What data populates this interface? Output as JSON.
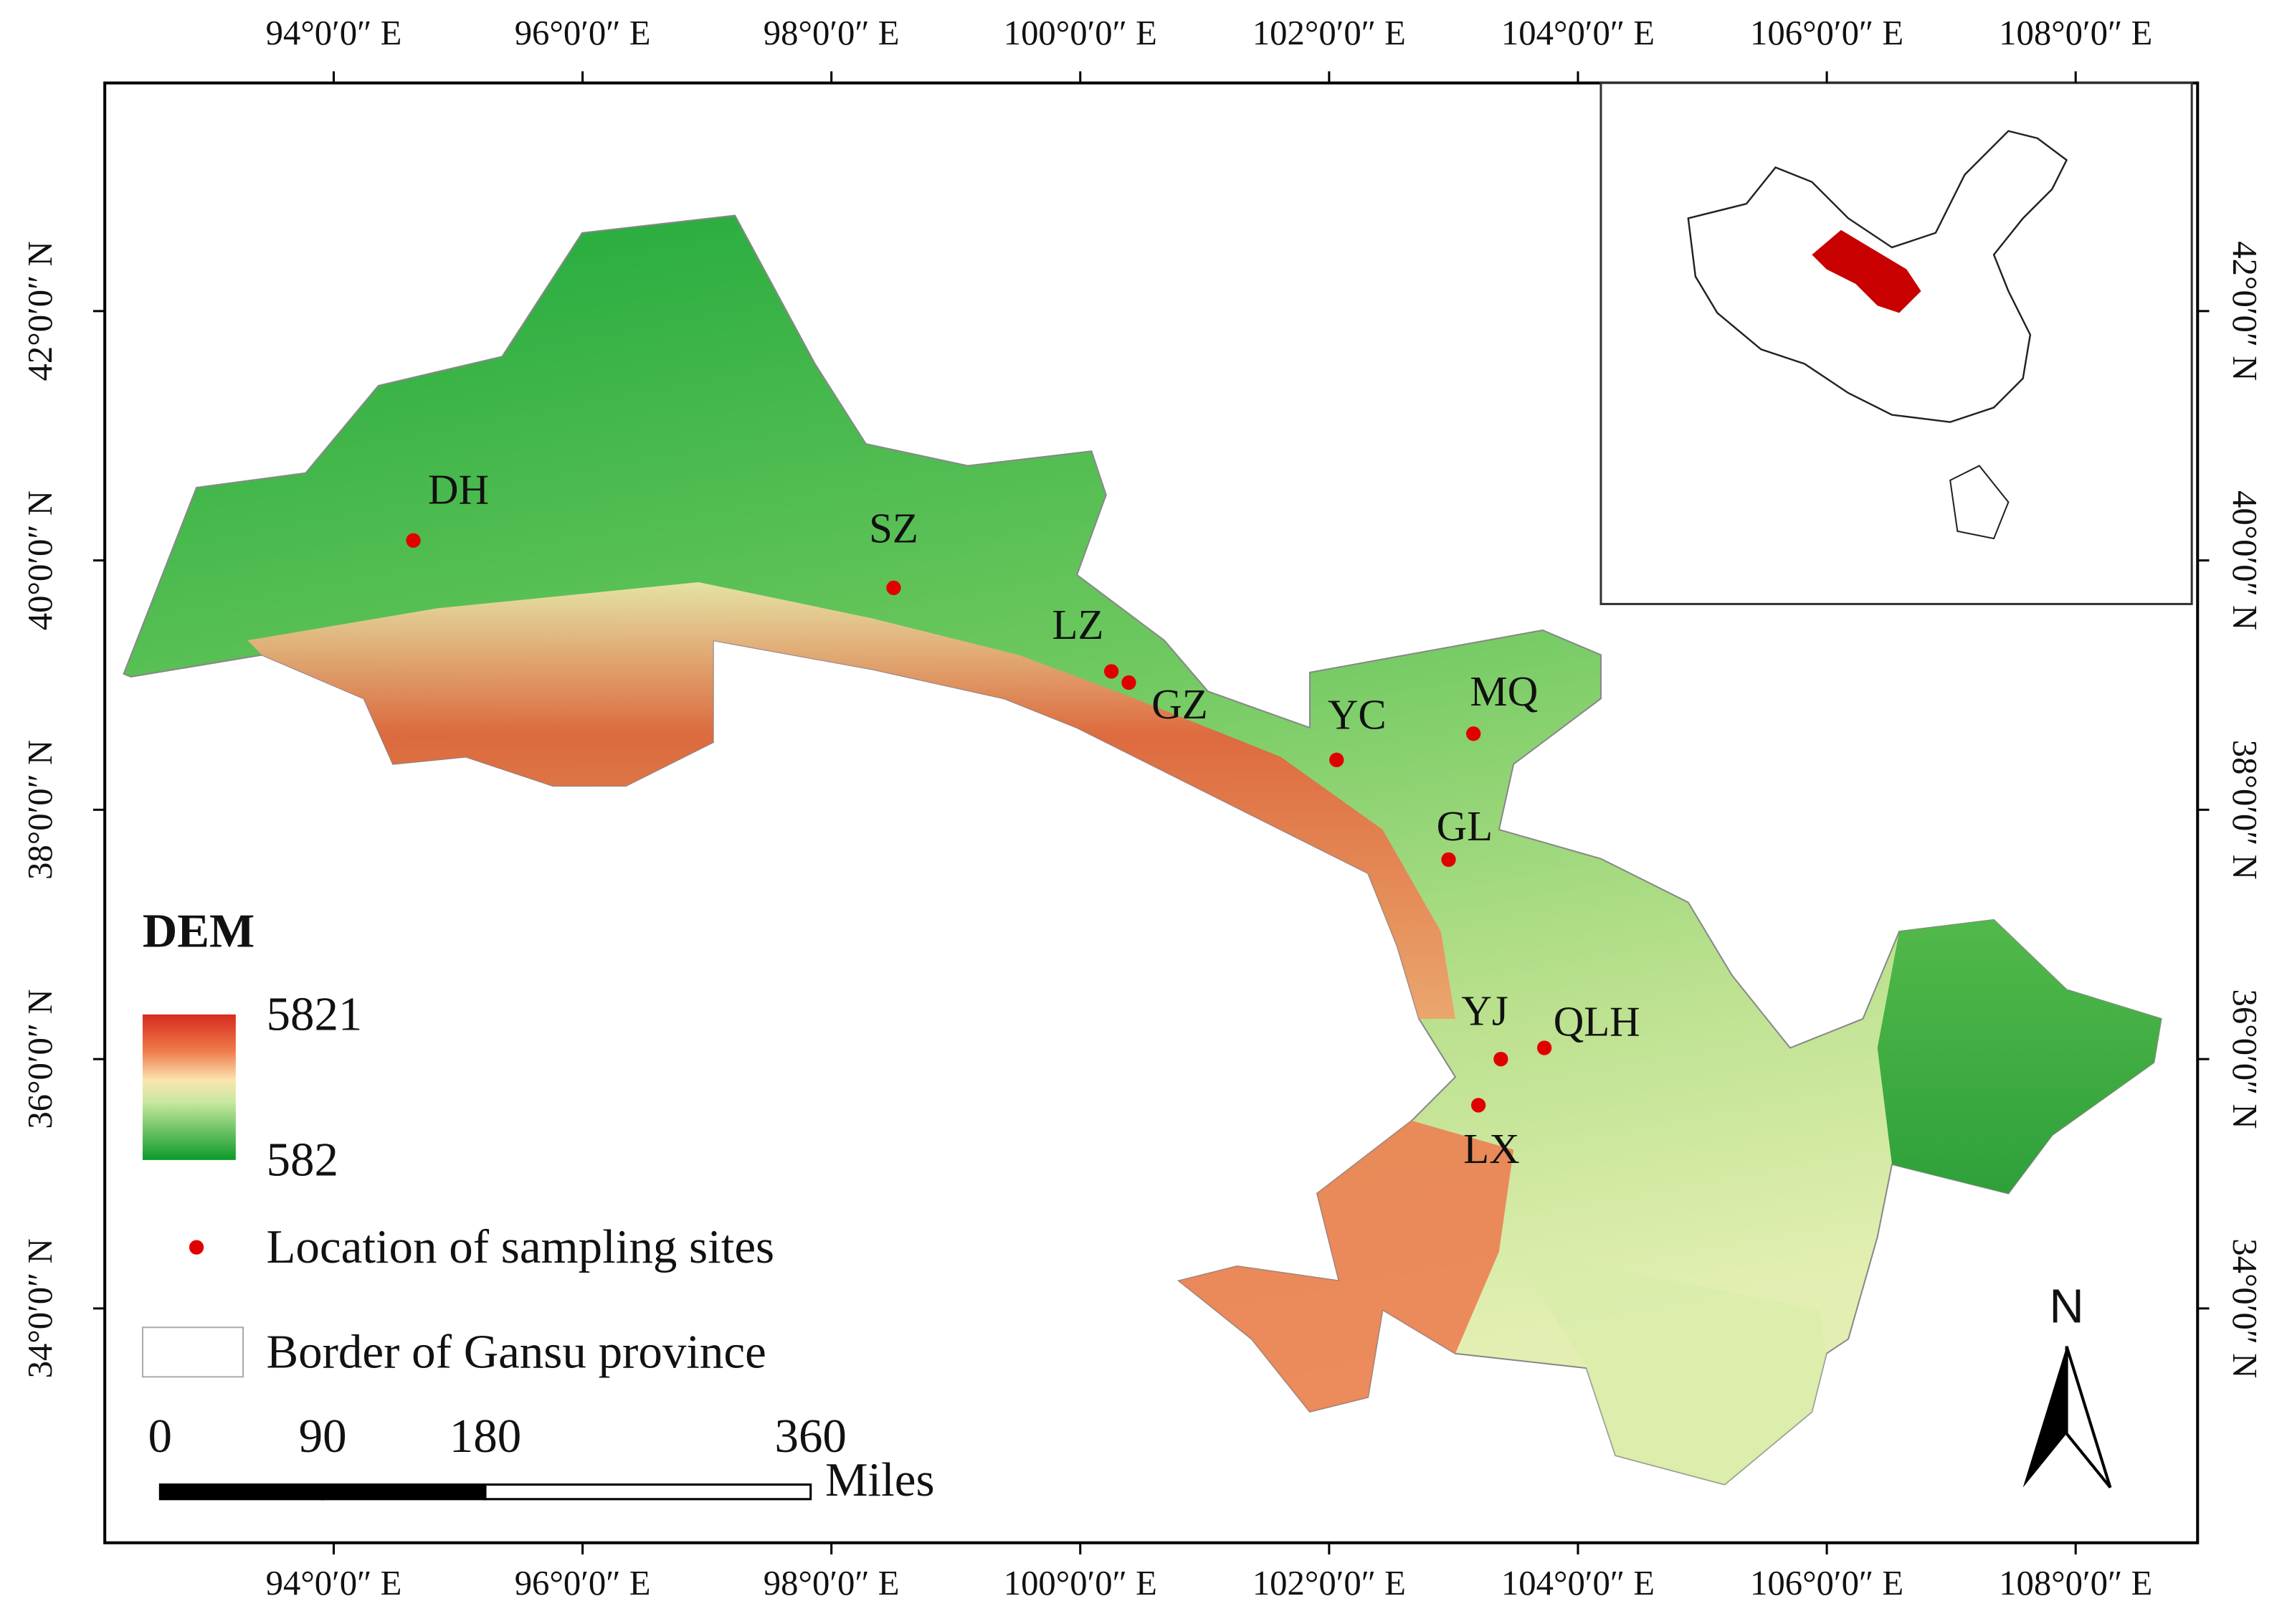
{
  "map": {
    "xlim": [
      92.16,
      108.98
    ],
    "ylim": [
      32.12,
      43.83
    ],
    "lon_ticks": [
      {
        "value": 94,
        "label": "94°0′0″ E"
      },
      {
        "value": 96,
        "label": "96°0′0″ E"
      },
      {
        "value": 98,
        "label": "98°0′0″ E"
      },
      {
        "value": 100,
        "label": "100°0′0″ E"
      },
      {
        "value": 102,
        "label": "102°0′0″ E"
      },
      {
        "value": 104,
        "label": "104°0′0″ E"
      },
      {
        "value": 106,
        "label": "106°0′0″ E"
      },
      {
        "value": 108,
        "label": "108°0′0″ E"
      }
    ],
    "lat_ticks": [
      {
        "value": 34,
        "label": "34°0′0″ N"
      },
      {
        "value": 36,
        "label": "36°0′0″ N"
      },
      {
        "value": 38,
        "label": "38°0′0″ N"
      },
      {
        "value": 40,
        "label": "40°0′0″ N"
      },
      {
        "value": 42,
        "label": "42°0′0″ N"
      }
    ],
    "site_color": "#e00000",
    "sites": [
      {
        "name": "DH",
        "lon": 94.64,
        "lat": 40.16
      },
      {
        "name": "SZ",
        "lon": 98.5,
        "lat": 39.78
      },
      {
        "name": "LZ",
        "lon": 100.25,
        "lat": 39.11
      },
      {
        "name": "GZ",
        "lon": 100.39,
        "lat": 39.02
      },
      {
        "name": "YC",
        "lon": 102.06,
        "lat": 38.4
      },
      {
        "name": "MQ",
        "lon": 103.16,
        "lat": 38.61
      },
      {
        "name": "GL",
        "lon": 102.96,
        "lat": 37.6
      },
      {
        "name": "YJ",
        "lon": 103.38,
        "lat": 36.0
      },
      {
        "name": "QLH",
        "lon": 103.73,
        "lat": 36.09
      },
      {
        "name": "LX",
        "lon": 103.2,
        "lat": 35.63
      }
    ]
  },
  "legend": {
    "title": "DEM",
    "dem_max": 5821,
    "dem_min": 582,
    "sites_label": "Location of sampling sites",
    "border_label": "Border of Gansu province"
  },
  "scale_bar": {
    "ticks": [
      0,
      90,
      180,
      360
    ],
    "unit": "Miles"
  },
  "north_arrow": "N"
}
